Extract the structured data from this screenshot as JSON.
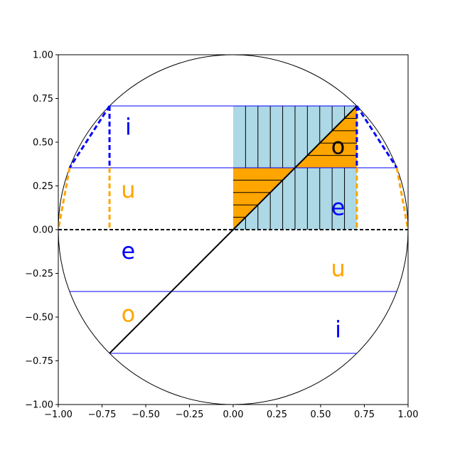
{
  "chart_data": {
    "type": "diagram",
    "title": "",
    "xlabel": "",
    "ylabel": "",
    "xlim": [
      -1.0,
      1.0
    ],
    "ylim": [
      -1.0,
      1.0
    ],
    "xticks": [
      "−1.00",
      "−0.75",
      "−0.50",
      "−0.25",
      "0.00",
      "0.25",
      "0.50",
      "0.75",
      "1.00"
    ],
    "yticks": [
      "−1.00",
      "−0.75",
      "−0.50",
      "−0.25",
      "0.00",
      "0.25",
      "0.50",
      "0.75",
      "1.00"
    ],
    "xtick_values": [
      -1.0,
      -0.75,
      -0.5,
      -0.25,
      0.0,
      0.25,
      0.5,
      0.75,
      1.0
    ],
    "ytick_values": [
      -1.0,
      -0.75,
      -0.5,
      -0.25,
      0.0,
      0.25,
      0.5,
      0.75,
      1.0
    ],
    "circle": {
      "center": [
        0,
        0
      ],
      "radius": 1.0
    },
    "horizontal_lines_y": [
      0.7071,
      0.3536,
      -0.3536,
      -0.7071
    ],
    "diagonal": {
      "from": [
        -0.7071,
        -0.7071
      ],
      "to": [
        0.7071,
        0.7071
      ]
    },
    "blue_rect": {
      "x0": 0.0,
      "x1": 0.7071,
      "y0": 0.0,
      "y1": 0.7071,
      "color": "#add8e6"
    },
    "vertical_hatch_count": 10,
    "orange_triangles": [
      {
        "points": [
          [
            0.0,
            0.0
          ],
          [
            0.3536,
            0.3536
          ],
          [
            0.0,
            0.3536
          ]
        ],
        "hatch_count": 5
      },
      {
        "points": [
          [
            0.3536,
            0.3536
          ],
          [
            0.7071,
            0.7071
          ],
          [
            0.7071,
            0.3536
          ]
        ],
        "hatch_count": 5
      }
    ],
    "letters": [
      {
        "text": "i",
        "x": -0.6,
        "y": 0.58,
        "color": "#0000ff"
      },
      {
        "text": "u",
        "x": -0.6,
        "y": 0.22,
        "color": "#ffa500"
      },
      {
        "text": "e",
        "x": -0.6,
        "y": -0.13,
        "color": "#0000ff"
      },
      {
        "text": "o",
        "x": -0.6,
        "y": -0.49,
        "color": "#ffa500"
      },
      {
        "text": "o",
        "x": 0.6,
        "y": 0.47,
        "color": "#000000"
      },
      {
        "text": "e",
        "x": 0.6,
        "y": 0.12,
        "color": "#0000ff"
      },
      {
        "text": "u",
        "x": 0.6,
        "y": -0.23,
        "color": "#ffa500"
      },
      {
        "text": "i",
        "x": 0.6,
        "y": -0.58,
        "color": "#0000ff"
      }
    ],
    "colors": {
      "blue": "#0000ff",
      "orange": "#ffa500",
      "black": "#000000",
      "lightblue": "#add8e6"
    }
  }
}
